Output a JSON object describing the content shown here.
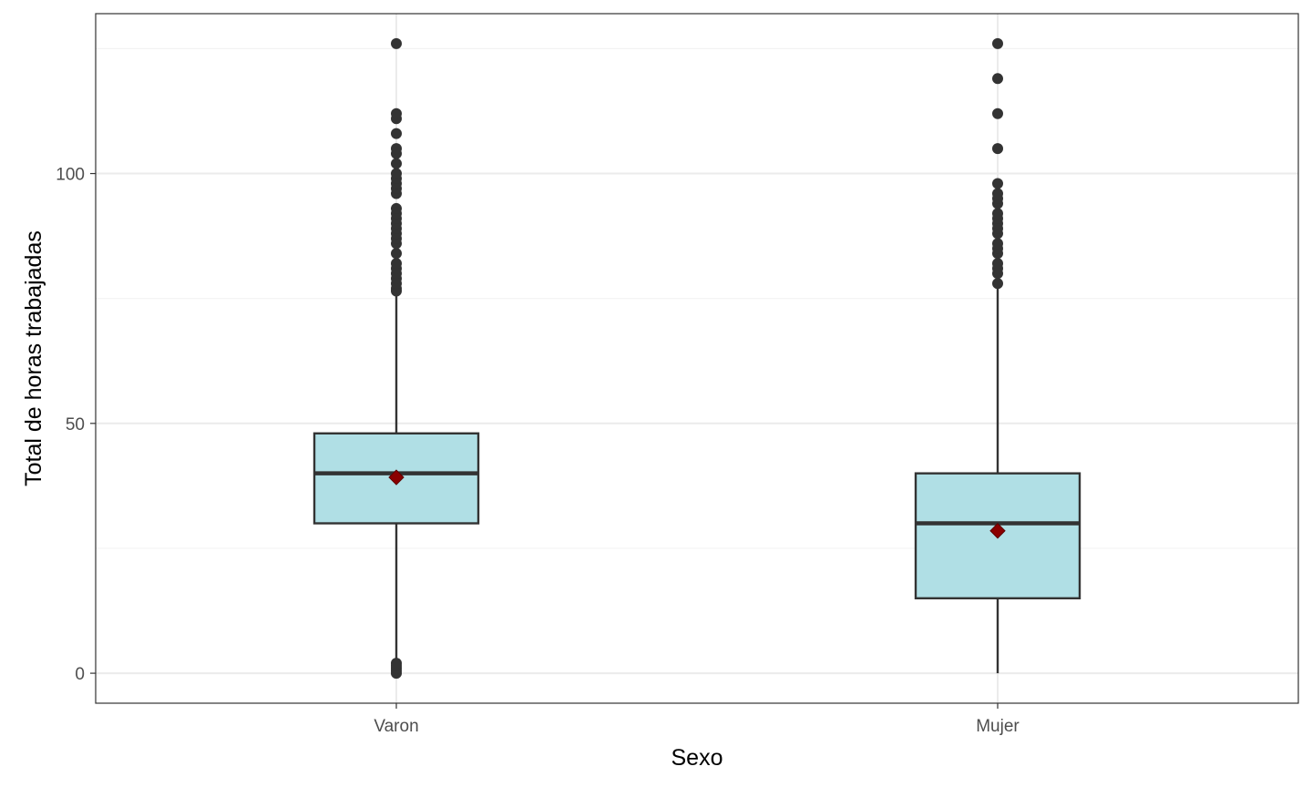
{
  "chart_data": {
    "type": "box",
    "title": "",
    "xlabel": "Sexo",
    "ylabel": "Total de horas trabajadas",
    "ylim": [
      -6,
      132
    ],
    "yticks": [
      0,
      50,
      100
    ],
    "ytick_labels": [
      "0",
      "50",
      "100"
    ],
    "grid": true,
    "categories": [
      "Varon",
      "Mujer"
    ],
    "boxes": [
      {
        "category": "Varon",
        "q1": 30,
        "median": 40,
        "q3": 48,
        "whisker_low": 0,
        "whisker_high": 76,
        "mean": 39.2,
        "outliers": [
          0,
          0.5,
          1,
          1.5,
          2,
          76.5,
          77,
          78,
          79,
          80,
          81,
          82,
          84,
          86,
          87,
          88,
          89,
          90,
          91,
          92,
          93,
          96,
          97,
          98,
          99,
          100,
          102,
          104,
          105,
          108,
          111,
          112,
          126
        ]
      },
      {
        "category": "Mujer",
        "q1": 15,
        "median": 30,
        "q3": 40,
        "whisker_low": 0,
        "whisker_high": 77,
        "mean": 28.5,
        "outliers": [
          78,
          80,
          81,
          82,
          84,
          85,
          86,
          88,
          89,
          90,
          91,
          92,
          94,
          95,
          96,
          98,
          105,
          112,
          119,
          126
        ]
      }
    ],
    "colors": {
      "box_fill": "#b0dfe5",
      "box_stroke": "#333333",
      "mean_marker": "#8b0000",
      "outlier": "#333333",
      "grid_major": "#ebebeb",
      "grid_minor": "#f3f3f3",
      "panel_border": "#333333"
    }
  }
}
